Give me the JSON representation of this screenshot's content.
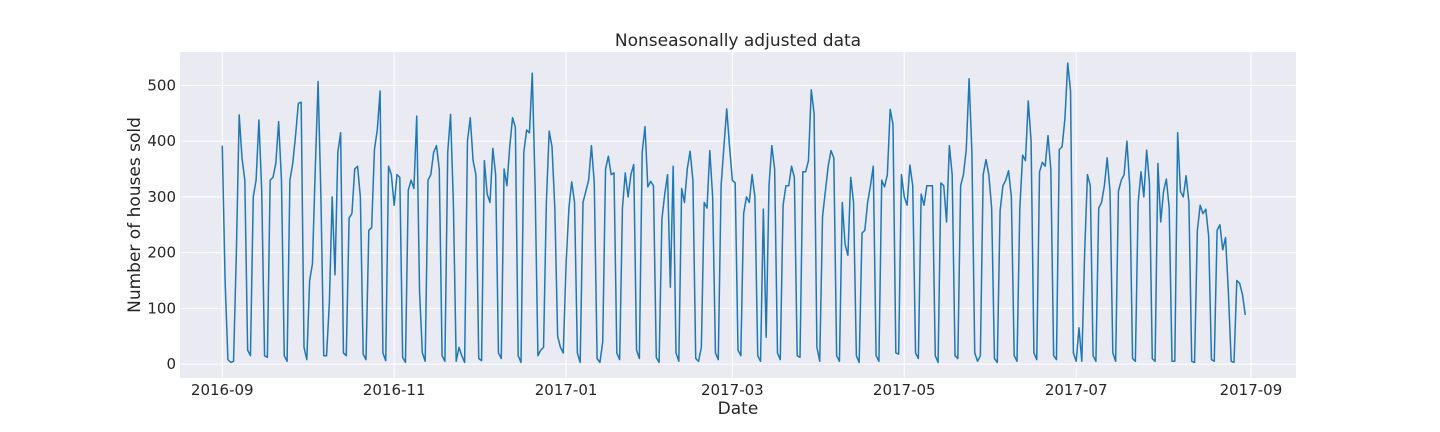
{
  "chart_data": {
    "type": "line",
    "title": "Nonseasonally adjusted data",
    "xlabel": "Date",
    "ylabel": "Number of houses sold",
    "xlim": [
      "2016-08-17",
      "2017-09-17"
    ],
    "ylim": [
      -25,
      560
    ],
    "grid": true,
    "legend": "none",
    "x_ticks": [
      "2016-09-01",
      "2016-11-01",
      "2017-01-01",
      "2017-03-01",
      "2017-05-01",
      "2017-07-01",
      "2017-09-01"
    ],
    "x_tick_labels": [
      "2016-09",
      "2016-11",
      "2017-01",
      "2017-03",
      "2017-05",
      "2017-07",
      "2017-09"
    ],
    "y_ticks": [
      0,
      100,
      200,
      300,
      400,
      500
    ],
    "y_tick_labels": [
      "0",
      "100",
      "200",
      "300",
      "400",
      "500"
    ],
    "colors": {
      "line": "#1f77b4",
      "plot_background": "#eaeaf2",
      "grid": "#ffffff",
      "text": "#262626"
    },
    "series": [
      {
        "start_date": "2016-09-01",
        "frequency": "daily",
        "values": [
          392,
          150,
          8,
          3,
          5,
          200,
          447,
          370,
          330,
          25,
          15,
          300,
          330,
          438,
          310,
          15,
          12,
          330,
          335,
          360,
          435,
          330,
          15,
          5,
          330,
          360,
          410,
          468,
          470,
          30,
          8,
          150,
          180,
          350,
          507,
          300,
          15,
          15,
          110,
          300,
          160,
          380,
          415,
          20,
          15,
          262,
          270,
          350,
          355,
          300,
          18,
          8,
          240,
          245,
          385,
          420,
          490,
          20,
          6,
          355,
          340,
          285,
          340,
          335,
          12,
          3,
          312,
          330,
          315,
          445,
          130,
          20,
          5,
          330,
          340,
          380,
          392,
          350,
          15,
          5,
          380,
          448,
          290,
          5,
          30,
          15,
          3,
          400,
          442,
          365,
          340,
          10,
          6,
          365,
          305,
          290,
          387,
          340,
          20,
          10,
          350,
          320,
          390,
          442,
          425,
          15,
          3,
          380,
          420,
          415,
          522,
          320,
          15,
          25,
          30,
          290,
          418,
          390,
          280,
          50,
          30,
          20,
          180,
          280,
          327,
          290,
          20,
          3,
          290,
          310,
          330,
          392,
          325,
          10,
          3,
          40,
          350,
          373,
          340,
          343,
          20,
          8,
          280,
          343,
          300,
          340,
          358,
          25,
          10,
          380,
          426,
          318,
          328,
          320,
          12,
          3,
          260,
          305,
          340,
          138,
          355,
          20,
          5,
          315,
          290,
          350,
          382,
          330,
          10,
          5,
          30,
          290,
          280,
          383,
          300,
          20,
          8,
          320,
          390,
          458,
          390,
          330,
          325,
          25,
          15,
          270,
          300,
          290,
          340,
          300,
          15,
          5,
          278,
          48,
          320,
          392,
          350,
          20,
          8,
          285,
          320,
          320,
          355,
          335,
          15,
          12,
          345,
          345,
          365,
          492,
          450,
          30,
          5,
          265,
          310,
          355,
          383,
          370,
          15,
          5,
          290,
          215,
          195,
          335,
          290,
          15,
          3,
          235,
          240,
          290,
          320,
          355,
          15,
          5,
          330,
          318,
          340,
          457,
          430,
          20,
          18,
          340,
          300,
          285,
          357,
          320,
          20,
          10,
          305,
          285,
          320,
          320,
          320,
          15,
          3,
          325,
          320,
          255,
          392,
          340,
          15,
          10,
          320,
          340,
          385,
          512,
          380,
          20,
          5,
          15,
          340,
          367,
          340,
          280,
          10,
          3,
          275,
          320,
          330,
          347,
          300,
          15,
          5,
          280,
          375,
          365,
          472,
          400,
          20,
          8,
          345,
          362,
          355,
          410,
          350,
          15,
          8,
          385,
          390,
          440,
          540,
          490,
          20,
          5,
          65,
          5,
          200,
          340,
          320,
          15,
          5,
          280,
          290,
          320,
          370,
          310,
          20,
          5,
          310,
          330,
          340,
          400,
          320,
          10,
          5,
          290,
          345,
          300,
          384,
          325,
          10,
          5,
          360,
          255,
          310,
          332,
          280,
          5,
          5,
          415,
          310,
          300,
          338,
          290,
          5,
          3,
          240,
          285,
          270,
          278,
          230,
          8,
          5,
          240,
          250,
          205,
          227,
          130,
          5,
          3,
          150,
          145,
          125,
          88
        ]
      }
    ]
  }
}
